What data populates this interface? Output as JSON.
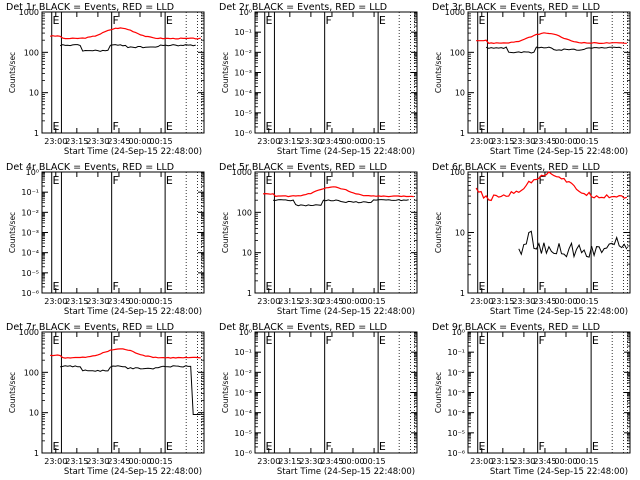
{
  "colors": {
    "events": "#000000",
    "lld": "#ff0000"
  },
  "common": {
    "xlabel": "Start Time (24-Sep-15 22:48:00)",
    "ylabel": "Counts/sec",
    "xticks": [
      "23:00",
      "23:15",
      "23:30",
      "23:45",
      "00:00",
      "00:15"
    ],
    "markers": [
      {
        "label": "E",
        "pos": "left"
      },
      {
        "label": "F",
        "pos": "mid"
      },
      {
        "label": "E",
        "pos": "right"
      }
    ]
  },
  "chart_data": [
    {
      "type": "line",
      "title": "Det 1r BLACK = Events, RED = LLD",
      "yscale": "log",
      "ylim": [
        1,
        1000
      ],
      "yticks": [
        "1",
        "10",
        "100",
        "1000"
      ],
      "series": [
        {
          "key": "lld",
          "style": "rise",
          "base": 220,
          "peak": 400
        },
        {
          "key": "events",
          "style": "flat",
          "base": 150,
          "dip": 110
        }
      ]
    },
    {
      "type": "line",
      "title": "Det 2r BLACK = Events, RED = LLD",
      "yscale": "log",
      "ylim": [
        1e-06,
        1.0
      ],
      "yticks": [
        "10⁰",
        "10⁻¹",
        "10⁻²",
        "10⁻³",
        "10⁻⁴",
        "10⁻⁵",
        "10⁻⁶"
      ],
      "series": []
    },
    {
      "type": "line",
      "title": "Det 3r BLACK = Events, RED = LLD",
      "yscale": "log",
      "ylim": [
        1,
        1000
      ],
      "yticks": [
        "1",
        "10",
        "100",
        "1000"
      ],
      "series": [
        {
          "key": "lld",
          "style": "rise",
          "base": 170,
          "peak": 300
        },
        {
          "key": "events",
          "style": "flat",
          "base": 130,
          "dip": 100
        }
      ]
    },
    {
      "type": "line",
      "title": "Det 4r BLACK = Events, RED = LLD",
      "yscale": "log",
      "ylim": [
        1e-06,
        1.0
      ],
      "yticks": [
        "10⁰",
        "10⁻¹",
        "10⁻²",
        "10⁻³",
        "10⁻⁴",
        "10⁻⁵",
        "10⁻⁶"
      ],
      "series": []
    },
    {
      "type": "line",
      "title": "Det 5r BLACK = Events, RED = LLD",
      "yscale": "log",
      "ylim": [
        1,
        1000
      ],
      "yticks": [
        "1",
        "10",
        "100",
        "1000"
      ],
      "series": [
        {
          "key": "lld",
          "style": "rise",
          "base": 250,
          "peak": 420
        },
        {
          "key": "events",
          "style": "flat",
          "base": 200,
          "dip": 150
        }
      ]
    },
    {
      "type": "line",
      "title": "Det 6r BLACK = Events, RED = LLD",
      "yscale": "log",
      "ylim": [
        1,
        100
      ],
      "yticks": [
        "1",
        "10",
        "100"
      ],
      "series": [
        {
          "key": "lld",
          "style": "noisy",
          "base": 40,
          "peak": 95
        },
        {
          "key": "events",
          "style": "sparse",
          "base": 5,
          "peak": 12
        }
      ]
    },
    {
      "type": "line",
      "title": "Det 7r BLACK = Events, RED = LLD",
      "yscale": "log",
      "ylim": [
        1,
        1000
      ],
      "yticks": [
        "1",
        "10",
        "100",
        "1000"
      ],
      "series": [
        {
          "key": "lld",
          "style": "rise",
          "base": 230,
          "peak": 380
        },
        {
          "key": "events",
          "style": "drop",
          "base": 140,
          "dip": 110
        }
      ]
    },
    {
      "type": "line",
      "title": "Det 8r BLACK = Events, RED = LLD",
      "yscale": "log",
      "ylim": [
        1e-06,
        1.0
      ],
      "yticks": [
        "10⁰",
        "10⁻¹",
        "10⁻²",
        "10⁻³",
        "10⁻⁴",
        "10⁻⁵",
        "10⁻⁶"
      ],
      "series": []
    },
    {
      "type": "line",
      "title": "Det 9r BLACK = Events, RED = LLD",
      "yscale": "log",
      "ylim": [
        1e-06,
        1.0
      ],
      "yticks": [
        "10⁰",
        "10⁻¹",
        "10⁻²",
        "10⁻³",
        "10⁻⁴",
        "10⁻⁵",
        "10⁻⁶"
      ],
      "series": []
    }
  ]
}
